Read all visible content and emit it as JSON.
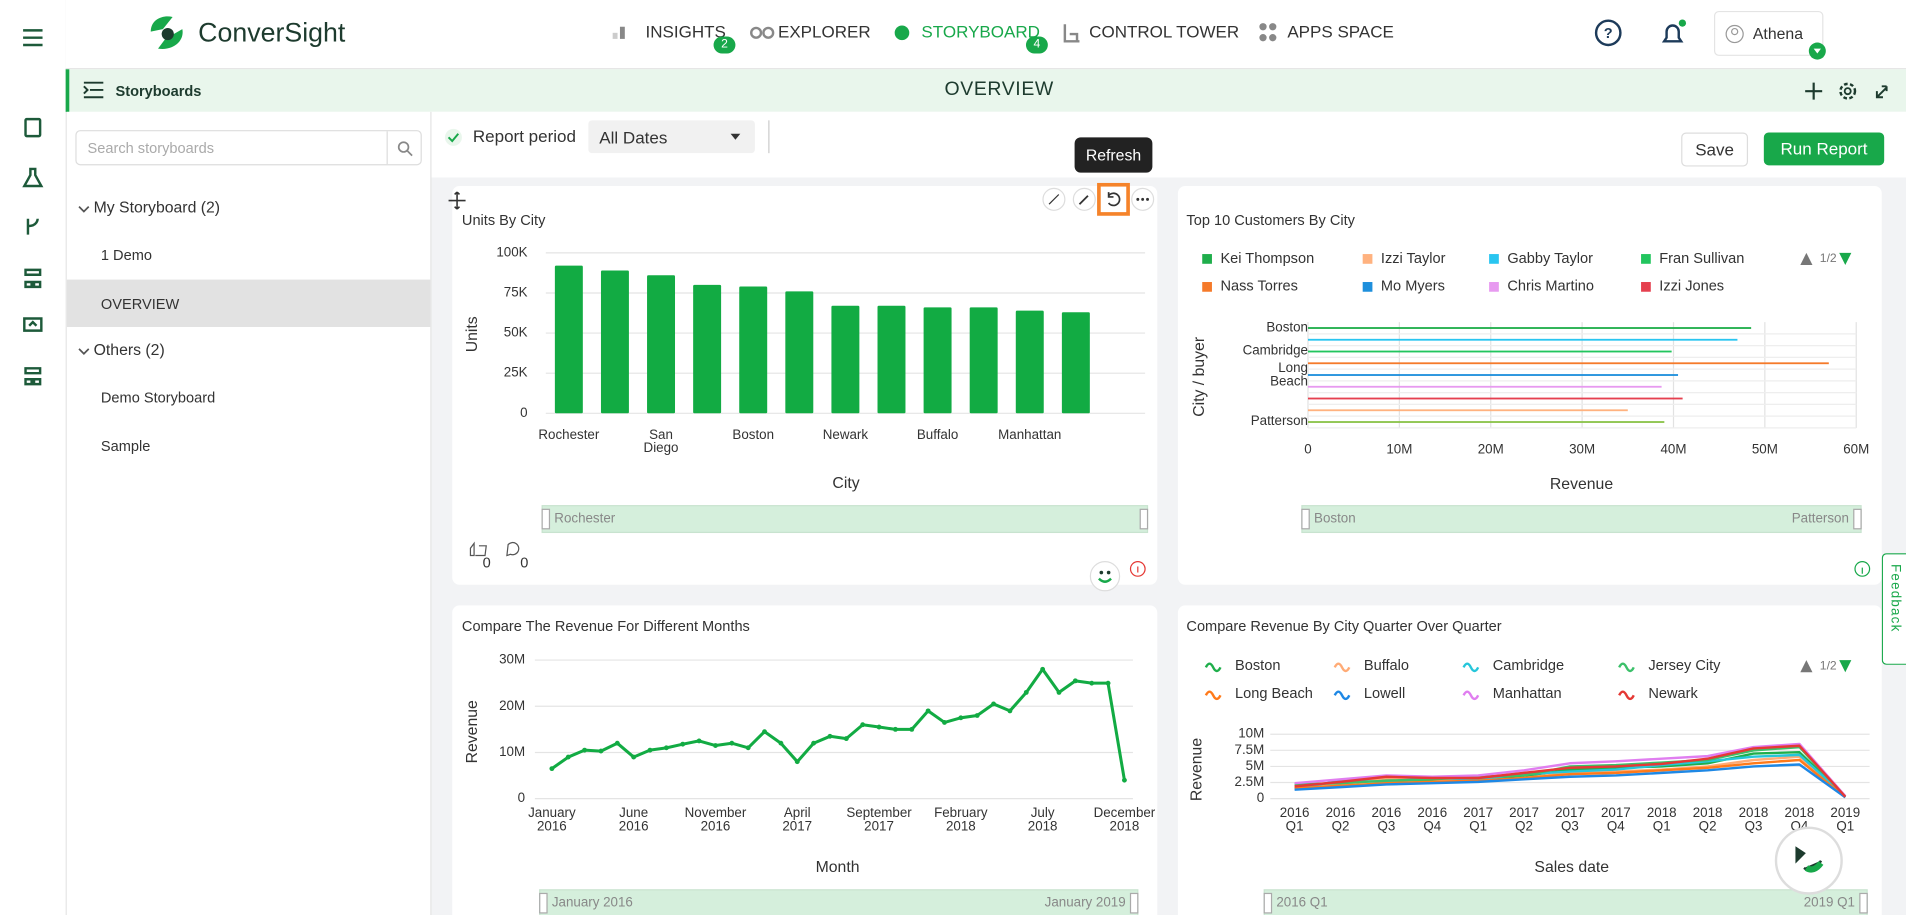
{
  "brand": "ConverSight",
  "nav": {
    "items": [
      {
        "label": "INSIGHTS",
        "badge": 2
      },
      {
        "label": "EXPLORER"
      },
      {
        "label": "STORYBOARD",
        "badge": 4
      },
      {
        "label": "CONTROL TOWER"
      },
      {
        "label": "APPS SPACE"
      }
    ],
    "user": "Athena"
  },
  "subheader": {
    "section": "Storyboards",
    "title": "OVERVIEW"
  },
  "sidebar": {
    "search_placeholder": "Search storyboards",
    "groups": [
      {
        "label": "My Storyboard (2)",
        "items": [
          "1 Demo",
          "OVERVIEW"
        ]
      },
      {
        "label": "Others (2)",
        "items": [
          "Demo Storyboard",
          "Sample"
        ]
      }
    ]
  },
  "toolbar": {
    "report_period": "Report period",
    "period_value": "All Dates",
    "save": "Save",
    "run": "Run Report",
    "tooltip": "Refresh"
  },
  "card_footer": {
    "likes": 0,
    "comments": 0
  },
  "feedback": "Feedback",
  "chart_data": [
    {
      "type": "bar",
      "title": "Units By City",
      "x_label": "City",
      "y_label": "Units",
      "color": "#12ab43",
      "categories": [
        "Rochester",
        null,
        "San Diego",
        null,
        "Boston",
        null,
        "Newark",
        null,
        "Buffalo",
        null,
        "Manhattan",
        null
      ],
      "values": [
        92000,
        89000,
        86000,
        80000,
        79000,
        76000,
        67000,
        67000,
        66000,
        66000,
        64000,
        63000
      ],
      "ylim": [
        0,
        100000
      ],
      "yticks": [
        0,
        {
          "value": 25000,
          "label": "25K"
        },
        {
          "value": 50000,
          "label": "50K"
        },
        {
          "value": 75000,
          "label": "75K"
        },
        {
          "value": 100000,
          "label": "100K"
        }
      ],
      "grid": true,
      "range_labels": [
        "Rochester"
      ]
    },
    {
      "type": "hbar",
      "title": "Top 10 Customers By City",
      "x_label": "Revenue",
      "y_label": "City / buyer",
      "legend": [
        {
          "name": "Kei Thompson",
          "color": "#1fae4b"
        },
        {
          "name": "Izzi Taylor",
          "color": "#ffb27f"
        },
        {
          "name": "Gabby Taylor",
          "color": "#29c5f0"
        },
        {
          "name": "Fran Sullivan",
          "color": "#22c55e"
        },
        {
          "name": "Nass Torres",
          "color": "#f57a2a"
        },
        {
          "name": "Mo Myers",
          "color": "#1e8fdc"
        },
        {
          "name": "Chris Martino",
          "color": "#e79af0"
        },
        {
          "name": "Izzi Jones",
          "color": "#e5404f"
        }
      ],
      "legend_page": "1/2",
      "categories": [
        "Boston",
        null,
        "Cambridge",
        null,
        "Long Beach",
        null,
        null,
        null,
        "Patterson"
      ],
      "values": [
        48500000,
        47000000,
        39800000,
        57000000,
        40500000,
        38700000,
        41000000,
        35000000,
        39000000
      ],
      "colors": [
        "#1fae4b",
        "#29c5f0",
        "#22c55e",
        "#f57a2a",
        "#1e8fdc",
        "#e79af0",
        "#e5404f",
        "#ffb27f",
        "#8bc34a"
      ],
      "xlim": [
        0,
        60000000
      ],
      "xticks": [
        0,
        {
          "value": 10000000,
          "label": "10M"
        },
        {
          "value": 20000000,
          "label": "20M"
        },
        {
          "value": 30000000,
          "label": "30M"
        },
        {
          "value": 40000000,
          "label": "40M"
        },
        {
          "value": 50000000,
          "label": "50M"
        },
        {
          "value": 60000000,
          "label": "60M"
        }
      ],
      "grid": true,
      "range_labels": [
        "Boston",
        "Patterson"
      ]
    },
    {
      "type": "line",
      "title": "Compare The Revenue For Different Months",
      "x_label": "Month",
      "y_label": "Revenue",
      "color": "#12ab43",
      "categories": [
        "January 2016",
        null,
        null,
        null,
        null,
        "June 2016",
        null,
        null,
        null,
        null,
        "November 2016",
        null,
        null,
        null,
        null,
        "April 2017",
        null,
        null,
        null,
        null,
        "September 2017",
        null,
        null,
        null,
        null,
        "February 2018",
        null,
        null,
        null,
        null,
        "July 2018",
        null,
        null,
        null,
        null,
        "December 2018"
      ],
      "values": [
        6500000,
        9000000,
        10500000,
        10300000,
        12000000,
        9000000,
        10500000,
        11000000,
        11800000,
        12500000,
        11500000,
        12000000,
        11000000,
        14500000,
        12000000,
        8000000,
        12000000,
        13500000,
        13000000,
        16000000,
        15500000,
        15000000,
        15000000,
        19000000,
        16500000,
        17500000,
        18000000,
        20500000,
        19000000,
        23000000,
        28000000,
        23000000,
        25500000,
        25000000,
        25000000,
        4000000
      ],
      "ylim": [
        0,
        30000000
      ],
      "yticks": [
        0,
        {
          "value": 10000000,
          "label": "10M"
        },
        {
          "value": 20000000,
          "label": "20M"
        },
        {
          "value": 30000000,
          "label": "30M"
        }
      ],
      "grid": true,
      "range_labels": [
        "January 2016",
        "January 2019"
      ]
    },
    {
      "type": "line",
      "title": "Compare Revenue By City Quarter Over Quarter",
      "x_label": "Sales date",
      "y_label": "Revenue",
      "legend_page": "1/2",
      "categories": [
        "2016 Q1",
        "2016 Q2",
        "2016 Q3",
        "2016 Q4",
        "2017 Q1",
        "2017 Q2",
        "2017 Q3",
        "2017 Q4",
        "2018 Q1",
        "2018 Q2",
        "2018 Q3",
        "2018 Q4",
        "2019 Q1"
      ],
      "series": [
        {
          "name": "Boston",
          "color": "#1fae4b",
          "values": [
            1800000,
            2500000,
            3000000,
            2800000,
            3000000,
            3500000,
            4500000,
            4800000,
            5000000,
            5500000,
            7000000,
            7200000,
            300000
          ]
        },
        {
          "name": "Buffalo",
          "color": "#ffab76",
          "values": [
            2000000,
            2200000,
            3200000,
            3000000,
            2700000,
            3200000,
            4000000,
            4200000,
            4500000,
            5000000,
            6000000,
            6500000,
            200000
          ]
        },
        {
          "name": "Cambridge",
          "color": "#26c6da",
          "values": [
            1500000,
            2800000,
            2600000,
            3200000,
            3000000,
            3800000,
            4200000,
            4500000,
            5200000,
            5800000,
            6500000,
            6800000,
            400000
          ]
        },
        {
          "name": "Jersey City",
          "color": "#3cc06a",
          "values": [
            2200000,
            2400000,
            2800000,
            3000000,
            3400000,
            3600000,
            5000000,
            5200000,
            5600000,
            6000000,
            7500000,
            8000000,
            300000
          ]
        },
        {
          "name": "Long Beach",
          "color": "#ff7a1a",
          "values": [
            1600000,
            2000000,
            2400000,
            2600000,
            2800000,
            3200000,
            3800000,
            4000000,
            4400000,
            4800000,
            5500000,
            6000000,
            200000
          ]
        },
        {
          "name": "Lowell",
          "color": "#1e88e5",
          "values": [
            1400000,
            1800000,
            2200000,
            2400000,
            2600000,
            3000000,
            3400000,
            3600000,
            4000000,
            4400000,
            5000000,
            5300000,
            200000
          ]
        },
        {
          "name": "Manhattan",
          "color": "#e07ef0",
          "values": [
            2400000,
            3000000,
            3600000,
            3400000,
            3600000,
            4400000,
            5500000,
            5800000,
            6200000,
            6600000,
            8000000,
            8500000,
            400000
          ]
        },
        {
          "name": "Newark",
          "color": "#e53935",
          "values": [
            1900000,
            2600000,
            3400000,
            3200000,
            3200000,
            4000000,
            4800000,
            5000000,
            5400000,
            6200000,
            7800000,
            8200000,
            300000
          ]
        }
      ],
      "ylim": [
        0,
        10000000
      ],
      "yticks": [
        0,
        {
          "value": 2500000,
          "label": "2.5M"
        },
        {
          "value": 5000000,
          "label": "5M"
        },
        {
          "value": 7500000,
          "label": "7.5M"
        },
        {
          "value": 10000000,
          "label": "10M"
        }
      ],
      "grid": true,
      "range_labels": [
        "2016 Q1",
        "2019 Q1"
      ]
    }
  ]
}
